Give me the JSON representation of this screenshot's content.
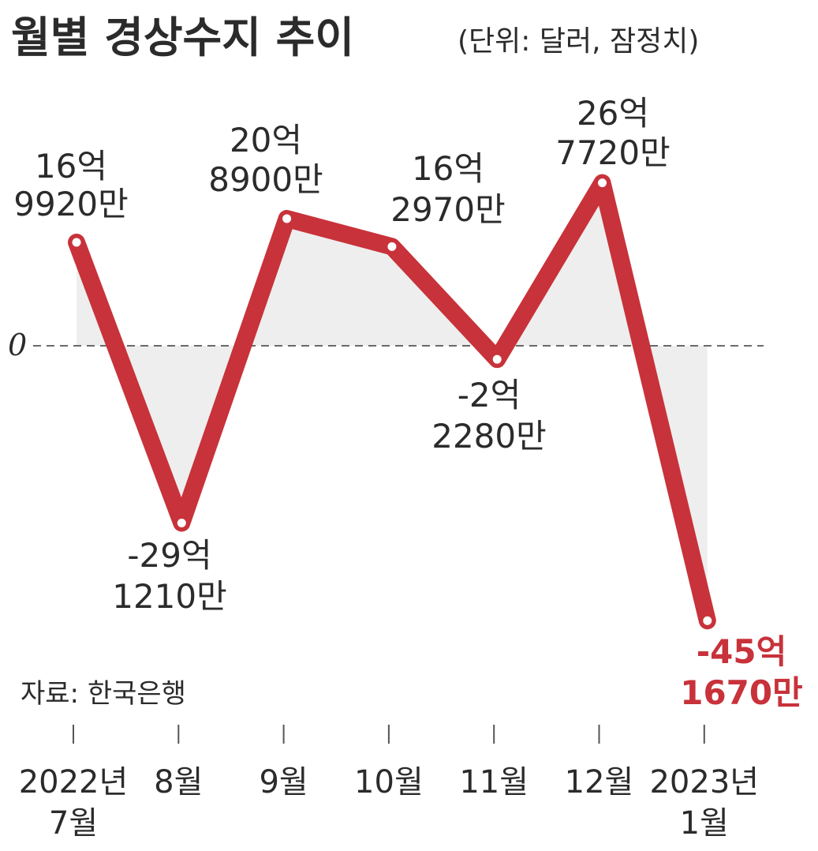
{
  "title": {
    "main": "월별 경상수지 추이",
    "unit": "(단위: 달러, 잠정치)"
  },
  "source": "자료: 한국은행",
  "zero_label": "0",
  "colors": {
    "line": "#c8323a",
    "area": "#eeeeee",
    "highlight_label": "#c8323a",
    "text": "#2b2b2b",
    "zero_line": "#555555"
  },
  "chart_data": {
    "type": "line",
    "title": "월별 경상수지 추이",
    "subtitle": "(단위: 달러, 잠정치)",
    "xlabel": "",
    "ylabel": "",
    "unit": "달러",
    "zero_line": true,
    "grid": false,
    "area_fill": true,
    "categories": [
      [
        "2022년",
        "7월"
      ],
      [
        "8월"
      ],
      [
        "9월"
      ],
      [
        "10월"
      ],
      [
        "11월"
      ],
      [
        "12월"
      ],
      [
        "2023년",
        "1월"
      ]
    ],
    "values": [
      1699200000,
      -2912100000,
      2089000000,
      1629700000,
      -222800000,
      2677200000,
      -4516700000
    ],
    "value_labels": [
      [
        "16억",
        "9920만"
      ],
      [
        "-29억",
        "1210만"
      ],
      [
        "20억",
        "8900만"
      ],
      [
        "16억",
        "2970만"
      ],
      [
        "-2억",
        "2280만"
      ],
      [
        "26억",
        "7720만"
      ],
      [
        "-45억",
        "1670만"
      ]
    ],
    "highlight_index": 6
  }
}
